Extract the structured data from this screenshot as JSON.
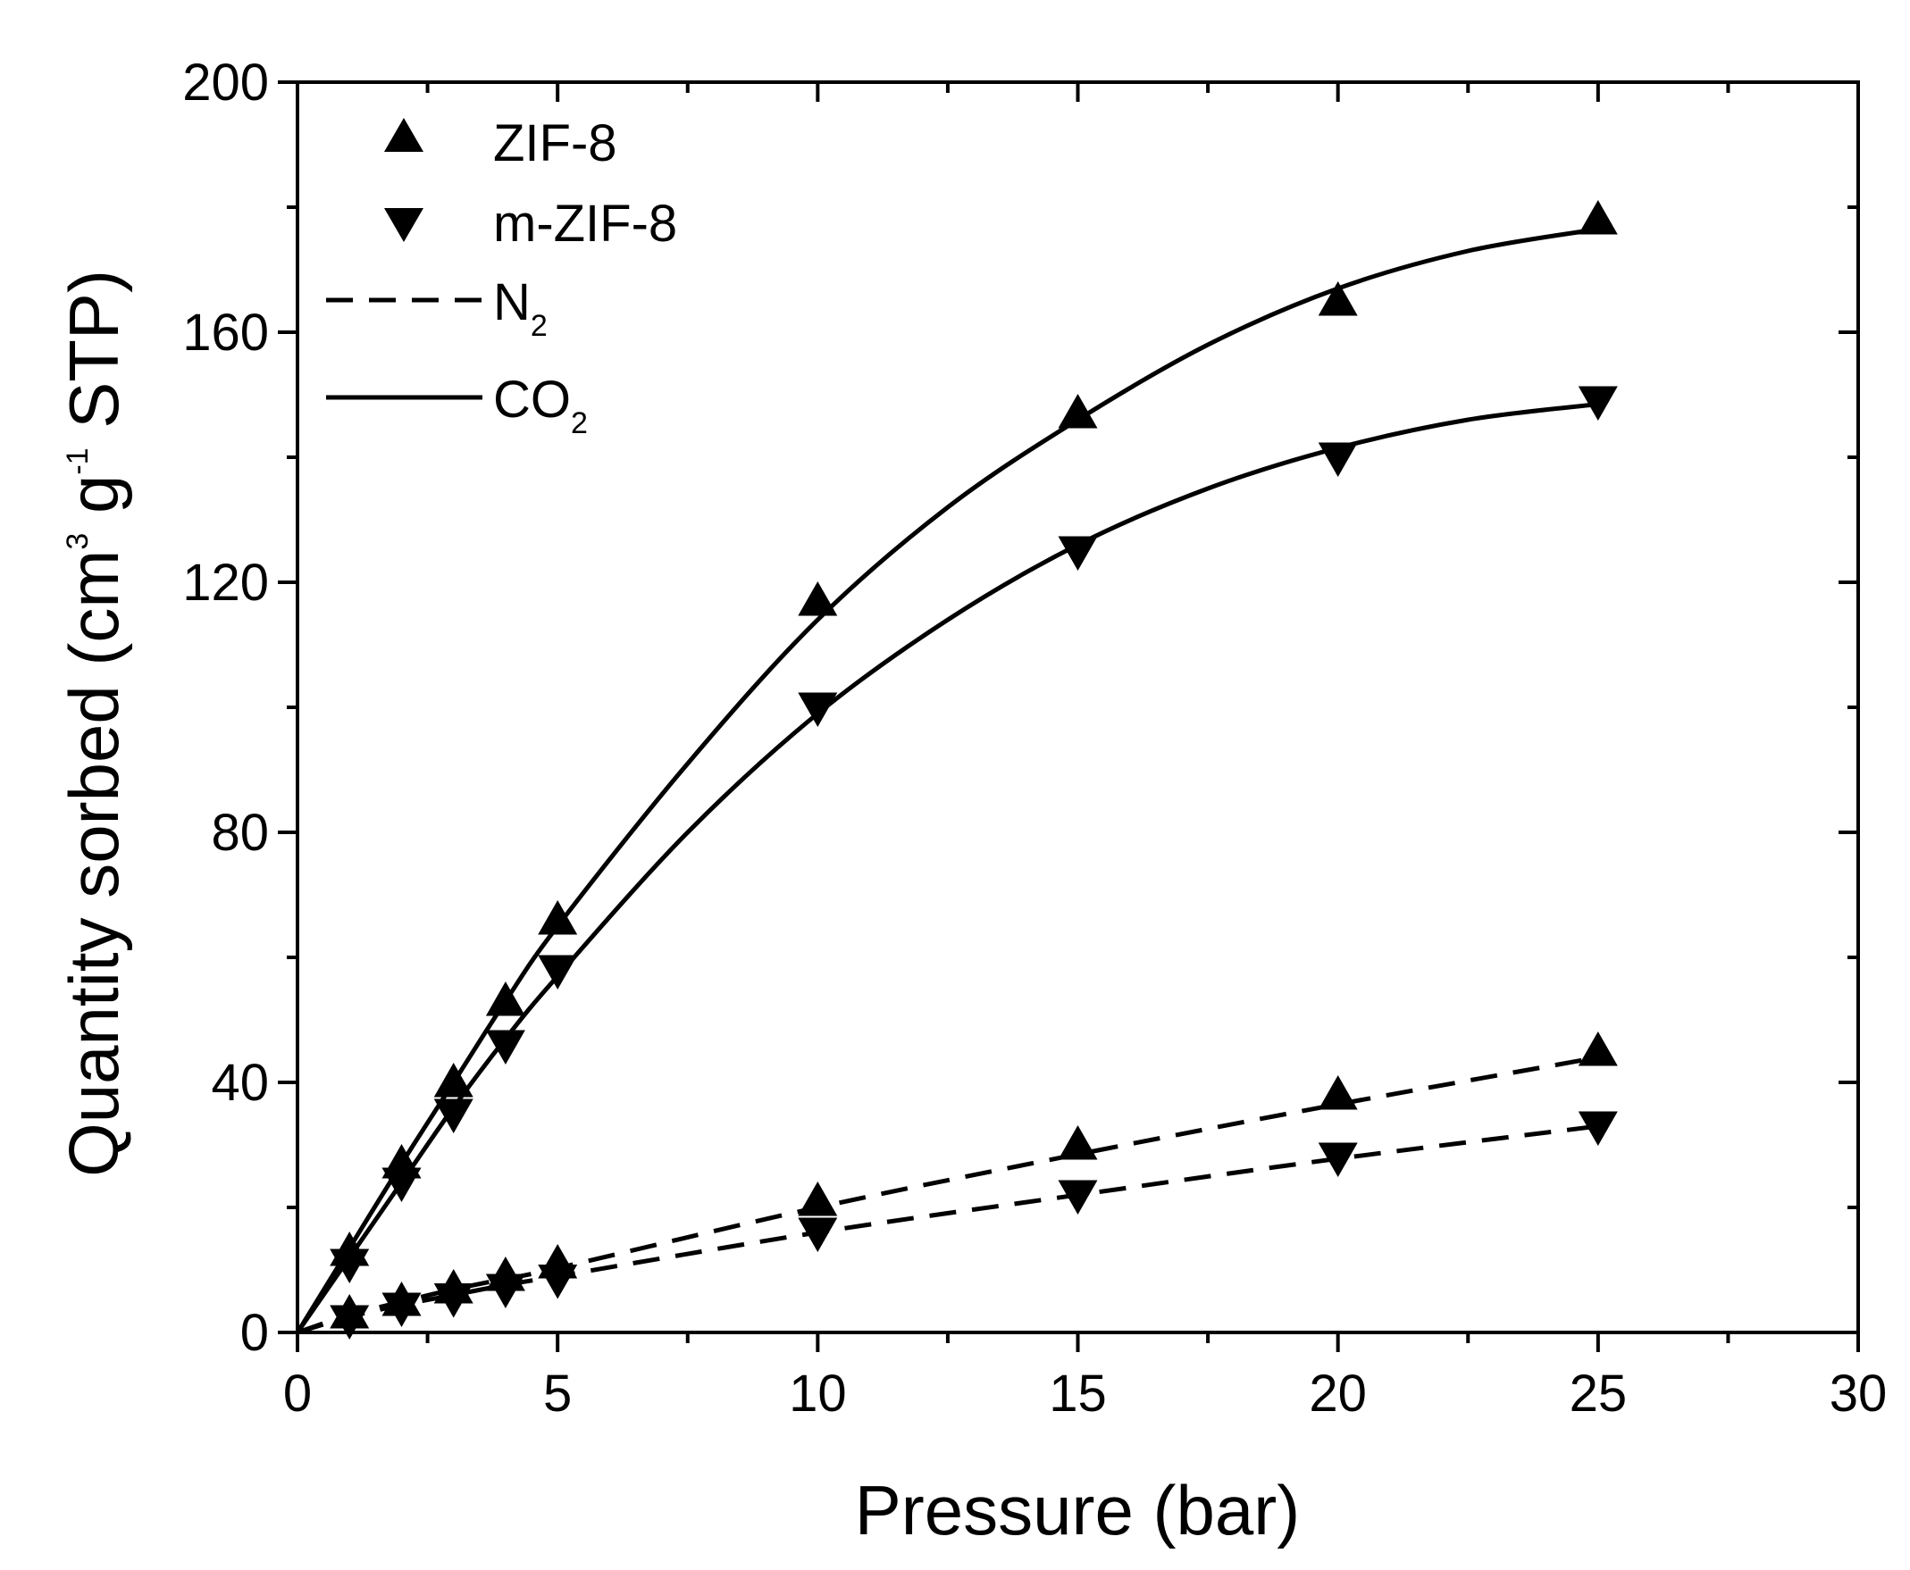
{
  "chart_data": {
    "type": "scatter",
    "xlabel": "Pressure (bar)",
    "ylabel": {
      "prefix": "Quantity sorbed (cm",
      "sup1": "3",
      "middle": " g",
      "sup2": "-1",
      "suffix": " STP)"
    },
    "xlim": [
      0,
      30
    ],
    "ylim": [
      0,
      200
    ],
    "x_ticks": [
      0,
      5,
      10,
      15,
      20,
      25,
      30
    ],
    "y_ticks": [
      0,
      40,
      80,
      120,
      160,
      200
    ],
    "grid": false,
    "legend_position": "top-left",
    "legend": {
      "zif8": "ZIF-8",
      "mzif8": "m-ZIF-8",
      "n2_base": "N",
      "n2_sub": "2",
      "co2_base": "CO",
      "co2_sub": "2"
    },
    "series": [
      {
        "name": "ZIF-8 CO2",
        "material": "ZIF-8",
        "gas": "CO2",
        "marker": "triangle-up",
        "line": "solid",
        "x": [
          1,
          2,
          3,
          4,
          5,
          10,
          15,
          20,
          25
        ],
        "y": [
          13,
          27,
          40,
          53,
          66,
          117,
          147,
          165,
          178
        ],
        "fit": [
          [
            0,
            0
          ],
          [
            1,
            13.5
          ],
          [
            2,
            27
          ],
          [
            3,
            40
          ],
          [
            4,
            53
          ],
          [
            5,
            65
          ],
          [
            7.5,
            91
          ],
          [
            10,
            114
          ],
          [
            12.5,
            132
          ],
          [
            15,
            146
          ],
          [
            17.5,
            158
          ],
          [
            20,
            167
          ],
          [
            22.5,
            173
          ],
          [
            25,
            176.5
          ]
        ]
      },
      {
        "name": "m-ZIF-8 CO2",
        "material": "m-ZIF-8",
        "gas": "CO2",
        "marker": "triangle-down",
        "line": "solid",
        "x": [
          1,
          2,
          3,
          4,
          5,
          10,
          15,
          20,
          25
        ],
        "y": [
          11,
          24,
          35,
          46,
          58,
          100,
          125,
          140,
          149
        ],
        "fit": [
          [
            0,
            0
          ],
          [
            1,
            12
          ],
          [
            2,
            24
          ],
          [
            3,
            36
          ],
          [
            4,
            47
          ],
          [
            5,
            57
          ],
          [
            7.5,
            80
          ],
          [
            10,
            99
          ],
          [
            12.5,
            114
          ],
          [
            15,
            126
          ],
          [
            17.5,
            135
          ],
          [
            20,
            141.5
          ],
          [
            22.5,
            146
          ],
          [
            25,
            148.5
          ]
        ]
      },
      {
        "name": "ZIF-8 N2",
        "material": "ZIF-8",
        "gas": "N2",
        "marker": "triangle-up",
        "line": "dashed",
        "x": [
          1,
          2,
          3,
          4,
          5,
          10,
          15,
          20,
          25
        ],
        "y": [
          3,
          5,
          7,
          9,
          11,
          21,
          30,
          38,
          45
        ],
        "fit": [
          [
            0,
            0
          ],
          [
            1,
            2.8
          ],
          [
            2,
            4.9
          ],
          [
            3,
            6.9
          ],
          [
            4,
            8.6
          ],
          [
            5,
            10.3
          ],
          [
            10,
            20
          ],
          [
            15,
            28.5
          ],
          [
            20,
            36.5
          ],
          [
            25,
            44
          ]
        ]
      },
      {
        "name": "m-ZIF-8 N2",
        "material": "m-ZIF-8",
        "gas": "N2",
        "marker": "triangle-down",
        "line": "dashed",
        "x": [
          1,
          2,
          3,
          4,
          5,
          10,
          15,
          20,
          25
        ],
        "y": [
          2,
          4,
          5.5,
          7,
          8.5,
          16,
          22,
          28,
          33
        ],
        "fit": [
          [
            0,
            0
          ],
          [
            1,
            2.5
          ],
          [
            2,
            4.4
          ],
          [
            3,
            6
          ],
          [
            4,
            7.6
          ],
          [
            5,
            9
          ],
          [
            10,
            16
          ],
          [
            15,
            22
          ],
          [
            20,
            27.8
          ],
          [
            25,
            33
          ]
        ]
      }
    ]
  }
}
